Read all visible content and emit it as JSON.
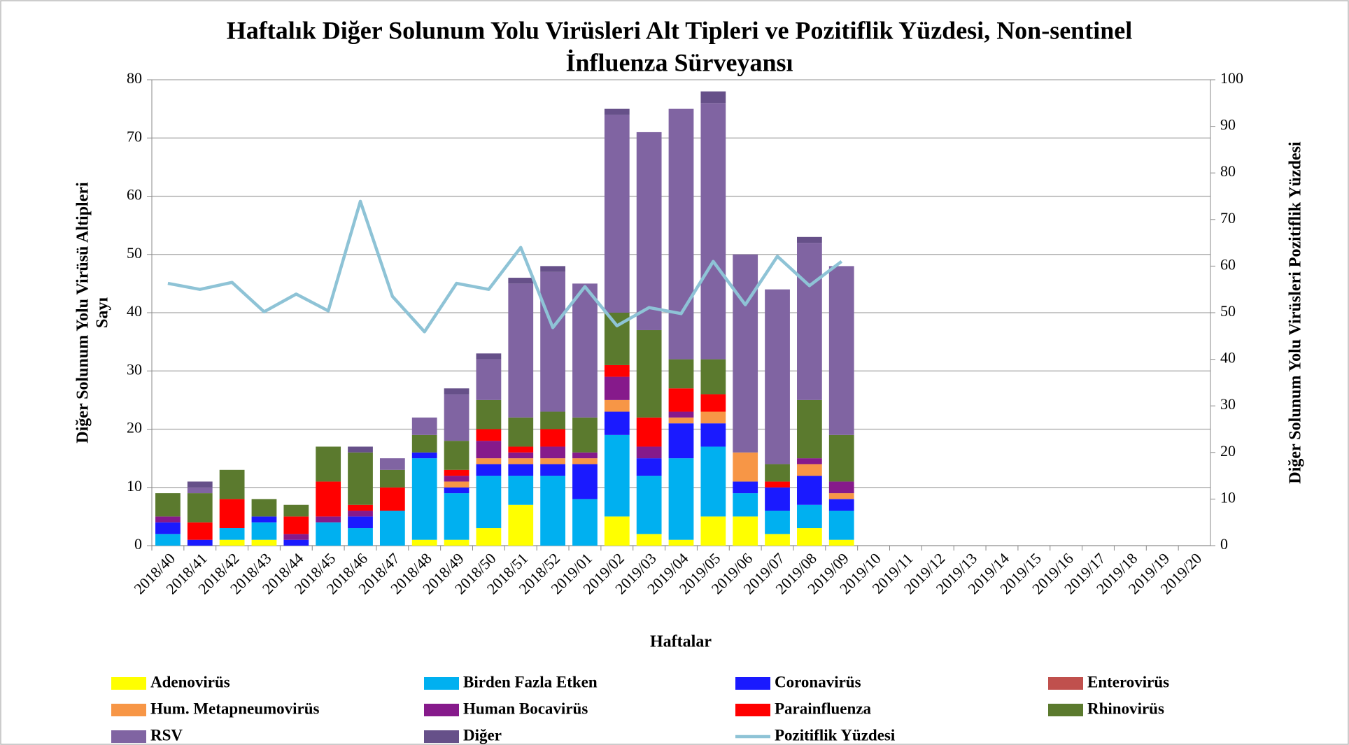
{
  "chart_data": {
    "type": "bar",
    "stacked": true,
    "title": [
      "Haftalık Diğer Solunum Yolu Virüsleri Alt Tipleri ve Pozitiflik Yüzdesi, Non-sentinel",
      "İnfluenza Sürveyansı"
    ],
    "x_label": "Haftalar",
    "y_label": [
      "Diğer Solunum Yolu Virüsü Altipleri",
      "Sayı"
    ],
    "y2_label": "Diğer Solunum Yolu Virüsleri Pozitiflik Yüzdesi",
    "categories": [
      "2018/40",
      "2018/41",
      "2018/42",
      "2018/43",
      "2018/44",
      "2018/45",
      "2018/46",
      "2018/47",
      "2018/48",
      "2018/49",
      "2018/50",
      "2018/51",
      "2018/52",
      "2019/01",
      "2019/02",
      "2019/03",
      "2019/04",
      "2019/05",
      "2019/06",
      "2019/07",
      "2019/08",
      "2019/09",
      "2019/10",
      "2019/11",
      "2019/12",
      "2019/13",
      "2019/14",
      "2019/15",
      "2019/16",
      "2019/17",
      "2019/18",
      "2019/19",
      "2019/20"
    ],
    "ylim": [
      0,
      80
    ],
    "yticks": [
      0,
      10,
      20,
      30,
      40,
      50,
      60,
      70,
      80
    ],
    "y2lim": [
      0,
      100
    ],
    "y2ticks": [
      0,
      10,
      20,
      30,
      40,
      50,
      60,
      70,
      80,
      90,
      100
    ],
    "grid": true,
    "legend": "bottom",
    "series": [
      {
        "name": "Adenovirüs",
        "color": "#ffff00",
        "values": [
          0,
          0,
          1,
          1,
          0,
          0,
          0,
          0,
          1,
          1,
          3,
          7,
          0,
          0,
          5,
          2,
          1,
          5,
          5,
          2,
          3,
          1,
          null,
          null,
          null,
          null,
          null,
          null,
          null,
          null,
          null,
          null,
          null
        ]
      },
      {
        "name": "Birden Fazla Etken",
        "color": "#00b0f0",
        "values": [
          2,
          0,
          2,
          3,
          0,
          4,
          3,
          6,
          14,
          8,
          9,
          5,
          12,
          8,
          14,
          10,
          14,
          12,
          4,
          4,
          4,
          5,
          null,
          null,
          null,
          null,
          null,
          null,
          null,
          null,
          null,
          null,
          null
        ]
      },
      {
        "name": "Coronavirüs",
        "color": "#1a1aff",
        "values": [
          2,
          1,
          0,
          1,
          1,
          0,
          2,
          0,
          1,
          1,
          2,
          2,
          2,
          6,
          4,
          3,
          6,
          4,
          2,
          4,
          5,
          2,
          null,
          null,
          null,
          null,
          null,
          null,
          null,
          null,
          null,
          null,
          null
        ]
      },
      {
        "name": "Enterovirüs",
        "color": "#c0504d",
        "values": [
          0,
          0,
          0,
          0,
          0,
          0,
          0,
          0,
          0,
          0,
          0,
          0,
          0,
          0,
          0,
          0,
          0,
          0,
          0,
          0,
          0,
          0,
          null,
          null,
          null,
          null,
          null,
          null,
          null,
          null,
          null,
          null,
          null
        ]
      },
      {
        "name": "Hum. Metapneumovirüs",
        "color": "#f79646",
        "values": [
          0,
          0,
          0,
          0,
          0,
          0,
          0,
          0,
          0,
          1,
          1,
          1,
          1,
          1,
          2,
          0,
          1,
          2,
          5,
          0,
          2,
          1,
          null,
          null,
          null,
          null,
          null,
          null,
          null,
          null,
          null,
          null,
          null
        ]
      },
      {
        "name": "Human Bocavirüs",
        "color": "#861a8b",
        "values": [
          1,
          0,
          0,
          0,
          1,
          1,
          1,
          0,
          0,
          1,
          3,
          1,
          2,
          1,
          4,
          2,
          1,
          0,
          0,
          0,
          1,
          2,
          null,
          null,
          null,
          null,
          null,
          null,
          null,
          null,
          null,
          null,
          null
        ]
      },
      {
        "name": "Parainfluenza",
        "color": "#ff0000",
        "values": [
          0,
          3,
          5,
          0,
          3,
          6,
          1,
          4,
          0,
          1,
          2,
          1,
          3,
          0,
          2,
          5,
          4,
          3,
          0,
          1,
          0,
          0,
          null,
          null,
          null,
          null,
          null,
          null,
          null,
          null,
          null,
          null,
          null
        ]
      },
      {
        "name": "Rhinovirüs",
        "color": "#5b7a2e",
        "values": [
          4,
          5,
          5,
          3,
          2,
          6,
          9,
          3,
          3,
          5,
          5,
          5,
          3,
          6,
          9,
          15,
          5,
          6,
          0,
          3,
          10,
          8,
          null,
          null,
          null,
          null,
          null,
          null,
          null,
          null,
          null,
          null,
          null
        ]
      },
      {
        "name": "RSV",
        "color": "#8064a2",
        "values": [
          0,
          1,
          0,
          0,
          0,
          0,
          0,
          2,
          3,
          8,
          7,
          23,
          24,
          23,
          34,
          34,
          43,
          44,
          34,
          30,
          27,
          29,
          null,
          null,
          null,
          null,
          null,
          null,
          null,
          null,
          null,
          null,
          null
        ]
      },
      {
        "name": "Diğer",
        "color": "#665089",
        "values": [
          0,
          1,
          0,
          0,
          0,
          0,
          1,
          0,
          0,
          1,
          1,
          1,
          1,
          0,
          1,
          0,
          0,
          2,
          0,
          0,
          1,
          0,
          null,
          null,
          null,
          null,
          null,
          null,
          null,
          null,
          null,
          null,
          null
        ]
      },
      {
        "name": "Pozitiflik Yüzdesi",
        "color": "#8ec3d6",
        "type": "line",
        "axis": "y2",
        "values": [
          56.3,
          55,
          56.5,
          50.2,
          54,
          50.4,
          73.9,
          53.5,
          45.9,
          56.3,
          55,
          64,
          46.8,
          55.6,
          47.2,
          51.1,
          49.8,
          61,
          51.7,
          62.1,
          55.8,
          61,
          null,
          null,
          null,
          null,
          null,
          null,
          null,
          null,
          null,
          null,
          null
        ]
      }
    ]
  }
}
